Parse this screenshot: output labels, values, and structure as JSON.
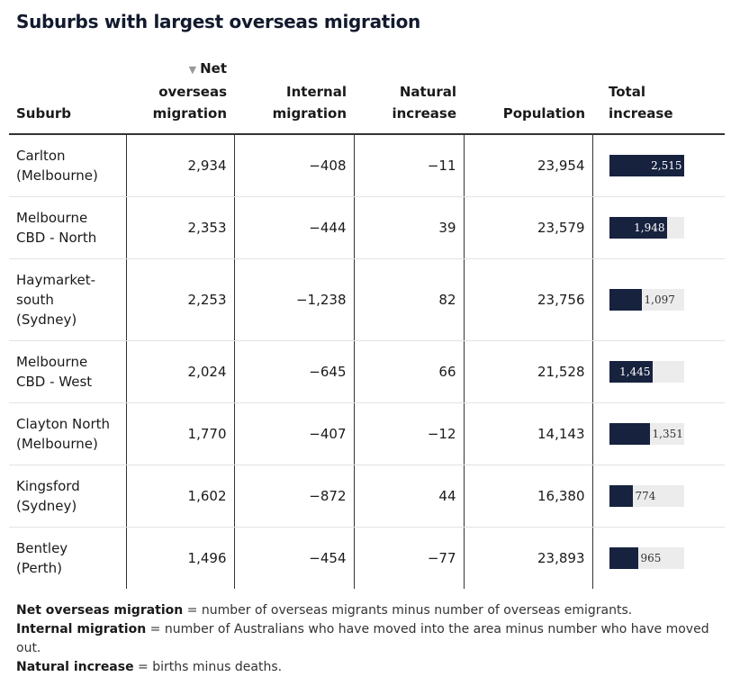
{
  "title": "Suburbs with largest overseas migration",
  "header": {
    "suburb": "Suburb",
    "sort_indicator": "▼",
    "net_line1": "Net",
    "net_line2": "overseas",
    "net_line3": "migration",
    "internal_line1": "Internal",
    "internal_line2": "migration",
    "natural_line1": "Natural",
    "natural_line2": "increase",
    "population": "Population",
    "total_line1": "Total",
    "total_line2": "increase"
  },
  "chart_data": {
    "type": "table",
    "title": "Suburbs with largest overseas migration",
    "columns": [
      "Suburb",
      "Net overseas migration",
      "Internal migration",
      "Natural increase",
      "Population",
      "Total increase"
    ],
    "bar_column": "Total increase",
    "bar_max": 2515,
    "rows": [
      {
        "suburb": [
          "Carlton",
          "(Melbourne)"
        ],
        "net": "2,934",
        "internal": "−408",
        "natural": "−11",
        "population": "23,954",
        "total": 2515,
        "total_label": "2,515"
      },
      {
        "suburb": [
          "Melbourne",
          "CBD - North"
        ],
        "net": "2,353",
        "internal": "−444",
        "natural": "39",
        "population": "23,579",
        "total": 1948,
        "total_label": "1,948"
      },
      {
        "suburb": [
          "Haymarket-",
          "south",
          "(Sydney)"
        ],
        "net": "2,253",
        "internal": "−1,238",
        "natural": "82",
        "population": "23,756",
        "total": 1097,
        "total_label": "1,097"
      },
      {
        "suburb": [
          "Melbourne",
          "CBD - West"
        ],
        "net": "2,024",
        "internal": "−645",
        "natural": "66",
        "population": "21,528",
        "total": 1445,
        "total_label": "1,445"
      },
      {
        "suburb": [
          "Clayton North",
          "(Melbourne)"
        ],
        "net": "1,770",
        "internal": "−407",
        "natural": "−12",
        "population": "14,143",
        "total": 1351,
        "total_label": "1,351"
      },
      {
        "suburb": [
          "Kingsford",
          "(Sydney)"
        ],
        "net": "1,602",
        "internal": "−872",
        "natural": "44",
        "population": "16,380",
        "total": 774,
        "total_label": "774"
      },
      {
        "suburb": [
          "Bentley",
          "(Perth)"
        ],
        "net": "1,496",
        "internal": "−454",
        "natural": "−77",
        "population": "23,893",
        "total": 965,
        "total_label": "965"
      }
    ]
  },
  "notes": [
    {
      "term": "Net overseas migration",
      "text": " = number of overseas migrants minus number of overseas emigrants."
    },
    {
      "term": "Internal migration",
      "text": " = number of Australians who have moved into the area minus number who have moved out."
    },
    {
      "term": "Natural increase",
      "text": " = births minus deaths."
    }
  ],
  "colors": {
    "bar": "#17223f",
    "track": "#ececec",
    "title": "#121a2e"
  }
}
